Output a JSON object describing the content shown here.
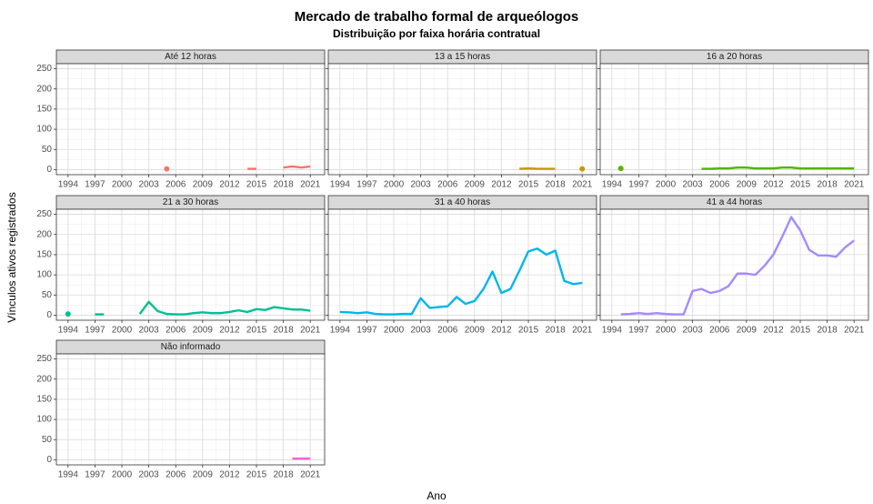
{
  "chart_data": {
    "type": "line",
    "title": "Mercado de trabalho formal de arqueólogos",
    "subtitle": "Distribuição por faixa horária contratual",
    "xlabel": "Ano",
    "ylabel": "Vínculos ativos registrados",
    "x": [
      1994,
      1995,
      1996,
      1997,
      1998,
      1999,
      2000,
      2001,
      2002,
      2003,
      2004,
      2005,
      2006,
      2007,
      2008,
      2009,
      2010,
      2011,
      2012,
      2013,
      2014,
      2015,
      2016,
      2017,
      2018,
      2019,
      2020,
      2021
    ],
    "xlim": [
      1992.7,
      2022.6
    ],
    "xticks": [
      1994,
      1997,
      2000,
      2003,
      2006,
      2009,
      2012,
      2015,
      2018,
      2021
    ],
    "ylim": [
      -12.5,
      262.5
    ],
    "yticks": [
      0,
      50,
      100,
      150,
      200,
      250
    ],
    "grid": true,
    "series": [
      {
        "name": "Até 12 horas",
        "color": "#F8766D",
        "values": [
          null,
          null,
          null,
          null,
          null,
          null,
          null,
          null,
          null,
          null,
          null,
          2,
          null,
          null,
          null,
          null,
          null,
          null,
          null,
          null,
          2,
          2,
          null,
          null,
          5,
          8,
          5,
          8
        ]
      },
      {
        "name": "13 a 15 horas",
        "color": "#C49A00",
        "values": [
          null,
          null,
          null,
          null,
          null,
          null,
          null,
          null,
          null,
          null,
          null,
          null,
          null,
          null,
          null,
          null,
          null,
          null,
          null,
          null,
          2,
          3,
          2,
          2,
          2,
          null,
          null,
          2
        ]
      },
      {
        "name": "16 a 20 horas",
        "color": "#53B400",
        "values": [
          null,
          3,
          null,
          null,
          null,
          null,
          null,
          null,
          null,
          null,
          2,
          2,
          3,
          3,
          5,
          5,
          3,
          3,
          3,
          5,
          5,
          3,
          3,
          3,
          3,
          3,
          3,
          3
        ]
      },
      {
        "name": "21 a 30 horas",
        "color": "#00C094",
        "values": [
          3,
          null,
          null,
          2,
          2,
          null,
          null,
          null,
          3,
          33,
          10,
          3,
          2,
          2,
          5,
          7,
          5,
          5,
          8,
          12,
          8,
          15,
          13,
          20,
          17,
          14,
          14,
          11
        ]
      },
      {
        "name": "31 a 40 horas",
        "color": "#00B6EB",
        "values": [
          8,
          7,
          5,
          7,
          3,
          2,
          2,
          3,
          3,
          42,
          18,
          20,
          22,
          45,
          28,
          35,
          65,
          108,
          55,
          65,
          110,
          158,
          165,
          150,
          160,
          85,
          77,
          80
        ]
      },
      {
        "name": "41 a 44 horas",
        "color": "#A58AFF",
        "values": [
          null,
          2,
          3,
          5,
          3,
          5,
          3,
          2,
          2,
          60,
          65,
          55,
          60,
          72,
          103,
          103,
          100,
          122,
          150,
          195,
          243,
          210,
          162,
          148,
          148,
          145,
          168,
          185
        ]
      },
      {
        "name": "Não informado",
        "color": "#FB61D7",
        "values": [
          null,
          null,
          null,
          null,
          null,
          null,
          null,
          null,
          null,
          null,
          null,
          null,
          null,
          null,
          null,
          null,
          null,
          null,
          null,
          null,
          null,
          null,
          null,
          null,
          null,
          3,
          3,
          3
        ]
      }
    ]
  }
}
